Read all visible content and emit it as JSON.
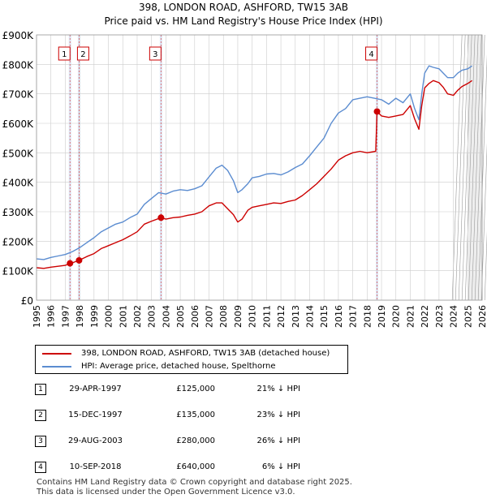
{
  "chart_data": {
    "type": "line",
    "title": "398, LONDON ROAD, ASHFORD, TW15 3AB",
    "subtitle": "Price paid vs. HM Land Registry's House Price Index (HPI)",
    "xlabel": "",
    "ylabel": "",
    "xlim": [
      1995,
      2026
    ],
    "ylim": [
      0,
      900000
    ],
    "x_ticks": [
      "1995",
      "1996",
      "1997",
      "1998",
      "1999",
      "2000",
      "2001",
      "2002",
      "2003",
      "2004",
      "2005",
      "2006",
      "2007",
      "2008",
      "2009",
      "2010",
      "2011",
      "2012",
      "2013",
      "2014",
      "2015",
      "2016",
      "2017",
      "2018",
      "2019",
      "2020",
      "2021",
      "2022",
      "2023",
      "2024",
      "2025",
      "2026"
    ],
    "y_ticks": [
      {
        "value": 0,
        "label": "£0"
      },
      {
        "value": 100000,
        "label": "£100K"
      },
      {
        "value": 200000,
        "label": "£200K"
      },
      {
        "value": 300000,
        "label": "£300K"
      },
      {
        "value": 400000,
        "label": "£400K"
      },
      {
        "value": 500000,
        "label": "£500K"
      },
      {
        "value": 600000,
        "label": "£600K"
      },
      {
        "value": 700000,
        "label": "£700K"
      },
      {
        "value": 800000,
        "label": "£800K"
      },
      {
        "value": 900000,
        "label": "£900K"
      }
    ],
    "grid": true,
    "forecast_from": 2025.05,
    "series": [
      {
        "name": "398, LONDON ROAD, ASHFORD, TW15 3AB (detached house)",
        "color": "#cc0000",
        "x": [
          1995.0,
          1995.5,
          1996.0,
          1996.5,
          1997.0,
          1997.33,
          1997.5,
          1997.96,
          1998.5,
          1999.0,
          1999.5,
          2000.0,
          2000.5,
          2001.0,
          2001.5,
          2002.0,
          2002.5,
          2003.0,
          2003.66,
          2004.0,
          2004.5,
          2005.0,
          2005.5,
          2006.0,
          2006.5,
          2007.0,
          2007.5,
          2007.9,
          2008.3,
          2008.7,
          2009.0,
          2009.3,
          2009.7,
          2010.0,
          2010.5,
          2011.0,
          2011.5,
          2012.0,
          2012.5,
          2013.0,
          2013.5,
          2014.0,
          2014.5,
          2015.0,
          2015.5,
          2016.0,
          2016.5,
          2017.0,
          2017.5,
          2018.0,
          2018.6,
          2018.69,
          2019.0,
          2019.5,
          2020.0,
          2020.5,
          2021.0,
          2021.3,
          2021.6,
          2021.8,
          2022.0,
          2022.3,
          2022.6,
          2023.0,
          2023.3,
          2023.6,
          2024.0,
          2024.3,
          2024.6,
          2025.0,
          2025.3
        ],
        "y": [
          110000,
          108000,
          112000,
          115000,
          118000,
          125000,
          127000,
          135000,
          148000,
          158000,
          175000,
          185000,
          195000,
          205000,
          218000,
          232000,
          258000,
          268000,
          280000,
          275000,
          280000,
          282000,
          288000,
          292000,
          300000,
          320000,
          330000,
          330000,
          310000,
          290000,
          265000,
          275000,
          305000,
          315000,
          320000,
          325000,
          330000,
          328000,
          335000,
          340000,
          355000,
          375000,
          395000,
          420000,
          445000,
          475000,
          490000,
          500000,
          505000,
          500000,
          505000,
          640000,
          625000,
          620000,
          625000,
          630000,
          660000,
          615000,
          580000,
          660000,
          720000,
          735000,
          745000,
          738000,
          722000,
          700000,
          695000,
          712000,
          725000,
          735000,
          745000
        ]
      },
      {
        "name": "HPI: Average price, detached house, Spelthorne",
        "color": "#5b8cd0",
        "x": [
          1995.0,
          1995.5,
          1996.0,
          1996.5,
          1997.0,
          1997.5,
          1998.0,
          1998.5,
          1999.0,
          1999.5,
          2000.0,
          2000.5,
          2001.0,
          2001.5,
          2002.0,
          2002.5,
          2003.0,
          2003.5,
          2004.0,
          2004.5,
          2005.0,
          2005.5,
          2006.0,
          2006.5,
          2007.0,
          2007.5,
          2007.9,
          2008.3,
          2008.7,
          2009.0,
          2009.3,
          2009.7,
          2010.0,
          2010.5,
          2011.0,
          2011.5,
          2012.0,
          2012.5,
          2013.0,
          2013.5,
          2014.0,
          2014.5,
          2015.0,
          2015.5,
          2016.0,
          2016.5,
          2017.0,
          2017.5,
          2018.0,
          2018.5,
          2019.0,
          2019.5,
          2020.0,
          2020.5,
          2021.0,
          2021.3,
          2021.6,
          2021.8,
          2022.0,
          2022.3,
          2022.6,
          2023.0,
          2023.3,
          2023.6,
          2024.0,
          2024.3,
          2024.6,
          2025.0,
          2025.3
        ],
        "y": [
          140000,
          138000,
          145000,
          150000,
          155000,
          165000,
          178000,
          195000,
          212000,
          232000,
          245000,
          258000,
          265000,
          280000,
          292000,
          325000,
          345000,
          365000,
          360000,
          370000,
          375000,
          372000,
          378000,
          388000,
          418000,
          448000,
          458000,
          440000,
          405000,
          365000,
          375000,
          395000,
          415000,
          420000,
          428000,
          430000,
          425000,
          435000,
          450000,
          462000,
          490000,
          520000,
          550000,
          600000,
          635000,
          650000,
          680000,
          685000,
          690000,
          685000,
          680000,
          665000,
          685000,
          670000,
          700000,
          650000,
          612000,
          700000,
          770000,
          795000,
          790000,
          785000,
          770000,
          755000,
          755000,
          770000,
          780000,
          785000,
          795000
        ]
      }
    ],
    "sales": [
      {
        "label": "1",
        "date": "29-APR-1997",
        "x": 1997.33,
        "price": "£125,000",
        "value": 125000,
        "hpi": "21% ↓ HPI"
      },
      {
        "label": "2",
        "date": "15-DEC-1997",
        "x": 1997.96,
        "price": "£135,000",
        "value": 135000,
        "hpi": "23% ↓ HPI"
      },
      {
        "label": "3",
        "date": "29-AUG-2003",
        "x": 2003.66,
        "price": "£280,000",
        "value": 280000,
        "hpi": "26% ↓ HPI"
      },
      {
        "label": "4",
        "date": "10-SEP-2018",
        "x": 2018.69,
        "price": "£640,000",
        "value": 640000,
        "hpi": "6% ↓ HPI"
      }
    ]
  },
  "legend": {
    "items": [
      {
        "label": "398, LONDON ROAD, ASHFORD, TW15 3AB (detached house)",
        "color": "#cc0000"
      },
      {
        "label": "HPI: Average price, detached house, Spelthorne",
        "color": "#5b8cd0"
      }
    ]
  },
  "footer": {
    "line1": "Contains HM Land Registry data © Crown copyright and database right 2025.",
    "line2": "This data is licensed under the Open Government Licence v3.0."
  }
}
